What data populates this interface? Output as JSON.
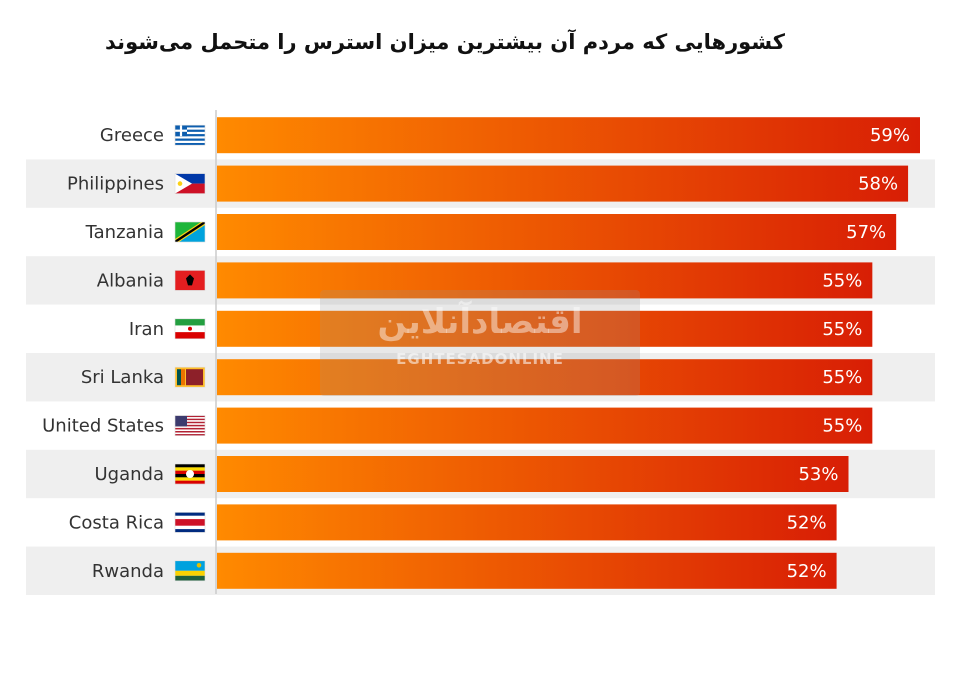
{
  "chart_data": {
    "type": "bar",
    "orientation": "horizontal",
    "title": "کشورهایی که مردم آن بیشترین میزان استرس را متحمل می‌شوند",
    "categories": [
      "Greece",
      "Philippines",
      "Tanzania",
      "Albania",
      "Iran",
      "Sri Lanka",
      "United States",
      "Uganda",
      "Costa Rica",
      "Rwanda"
    ],
    "values": [
      59,
      58,
      57,
      55,
      55,
      55,
      55,
      53,
      52,
      52
    ],
    "value_suffix": "%",
    "xlim": [
      0,
      59
    ],
    "grid": false,
    "legend": "none",
    "flags": [
      "flag-greece-icon",
      "flag-philippines-icon",
      "flag-tanzania-icon",
      "flag-albania-icon",
      "flag-iran-icon",
      "flag-sri-lanka-icon",
      "flag-united-states-icon",
      "flag-uganda-icon",
      "flag-costa-rica-icon",
      "flag-rwanda-icon"
    ],
    "colors": {
      "bar_start": "#ff8a00",
      "bar_end": "#d81e05",
      "row_stripe": "#efefef",
      "label": "#333333",
      "value_label": "#ffffff"
    }
  },
  "watermark": {
    "logo_text": "اقتصادآنلاین",
    "text": "EGHTESADONLINE"
  }
}
